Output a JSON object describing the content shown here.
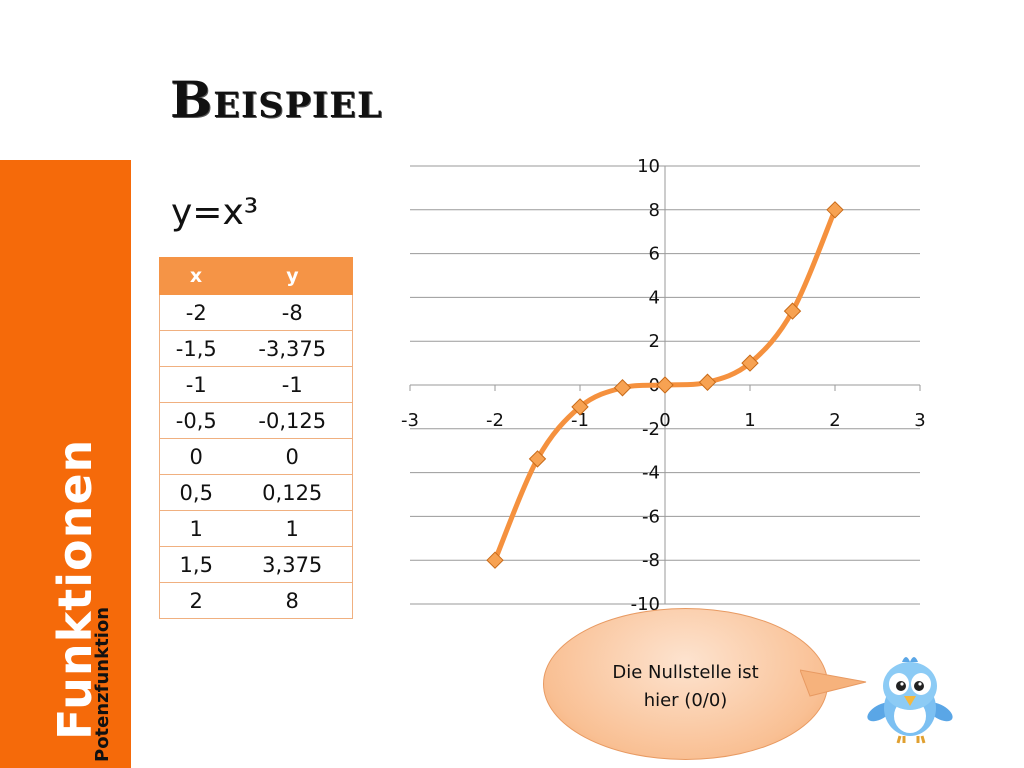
{
  "slide": {
    "heading": "Beispiel",
    "formula": "y=x³",
    "sidebar_title": "Funktionen",
    "sidebar_subtitle": "Potenzfunktion"
  },
  "table": {
    "headers": [
      "x",
      "y"
    ],
    "rows": [
      [
        "-2",
        "-8"
      ],
      [
        "-1,5",
        "-3,375"
      ],
      [
        "-1",
        "-1"
      ],
      [
        "-0,5",
        "-0,125"
      ],
      [
        "0",
        "0"
      ],
      [
        "0,5",
        "0,125"
      ],
      [
        "1",
        "1"
      ],
      [
        "1,5",
        "3,375"
      ],
      [
        "2",
        "8"
      ]
    ]
  },
  "chart_data": {
    "type": "scatter",
    "title": "",
    "xlabel": "",
    "ylabel": "",
    "xlim": [
      -3,
      3
    ],
    "ylim": [
      -10,
      10
    ],
    "x_ticks": [
      "-3",
      "-2",
      "-1",
      "0",
      "1",
      "2",
      "3"
    ],
    "y_ticks": [
      "10",
      "8",
      "6",
      "4",
      "2",
      "0",
      "-2",
      "-4",
      "-6",
      "-8",
      "-10"
    ],
    "grid": "horizontal",
    "smooth_line": true,
    "marker": "diamond",
    "color": "#f5913e",
    "series": [
      {
        "x": [
          -2,
          -1.5,
          -1,
          -0.5,
          0,
          0.5,
          1,
          1.5,
          2
        ],
        "y": [
          -8,
          -3.375,
          -1,
          -0.125,
          0,
          0.125,
          1,
          3.375,
          8
        ]
      }
    ]
  },
  "callout": {
    "text_line1": "Die Nullstelle ist",
    "text_line2": "hier (0/0)"
  },
  "colors": {
    "accent": "#f56a0a",
    "table_header": "#f59446"
  }
}
